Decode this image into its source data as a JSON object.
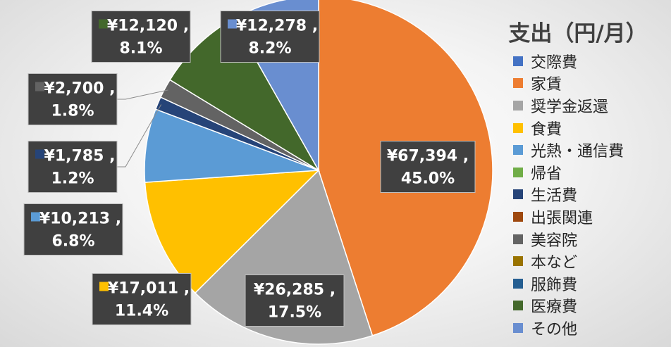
{
  "chart_data": {
    "type": "pie",
    "title": "支出（円/月）",
    "legend_position": "right",
    "categories": [
      "交際費",
      "家賃",
      "奨学金返還",
      "食費",
      "光熱・通信費",
      "帰省",
      "生活費",
      "出張関連",
      "美容院",
      "本など",
      "服飾費",
      "医療費",
      "その他"
    ],
    "values": [
      0,
      67394,
      26285,
      17011,
      10213,
      0,
      1785,
      0,
      2700,
      0,
      0,
      12120,
      12278
    ],
    "colors": [
      "#4472C4",
      "#ED7D31",
      "#A5A5A5",
      "#FFC000",
      "#5B9BD5",
      "#70AD47",
      "#264478",
      "#9E480E",
      "#636363",
      "#997300",
      "#255E91",
      "#43682B",
      "#698ED0"
    ],
    "data_labels": [
      {
        "category": "家賃",
        "value": "¥67,394 ,",
        "percent": "45.0%"
      },
      {
        "category": "奨学金返還",
        "value": "¥26,285 ,",
        "percent": "17.5%"
      },
      {
        "category": "食費",
        "value": "¥17,011 ,",
        "percent": "11.4%"
      },
      {
        "category": "光熱・通信費",
        "value": "¥10,213 ,",
        "percent": "6.8%"
      },
      {
        "category": "生活費",
        "value": "¥1,785 ,",
        "percent": "1.2%"
      },
      {
        "category": "美容院",
        "value": "¥2,700 ,",
        "percent": "1.8%"
      },
      {
        "category": "医療費",
        "value": "¥12,120 ,",
        "percent": "8.1%"
      },
      {
        "category": "その他",
        "value": "¥12,278 ,",
        "percent": "8.2%"
      }
    ]
  }
}
